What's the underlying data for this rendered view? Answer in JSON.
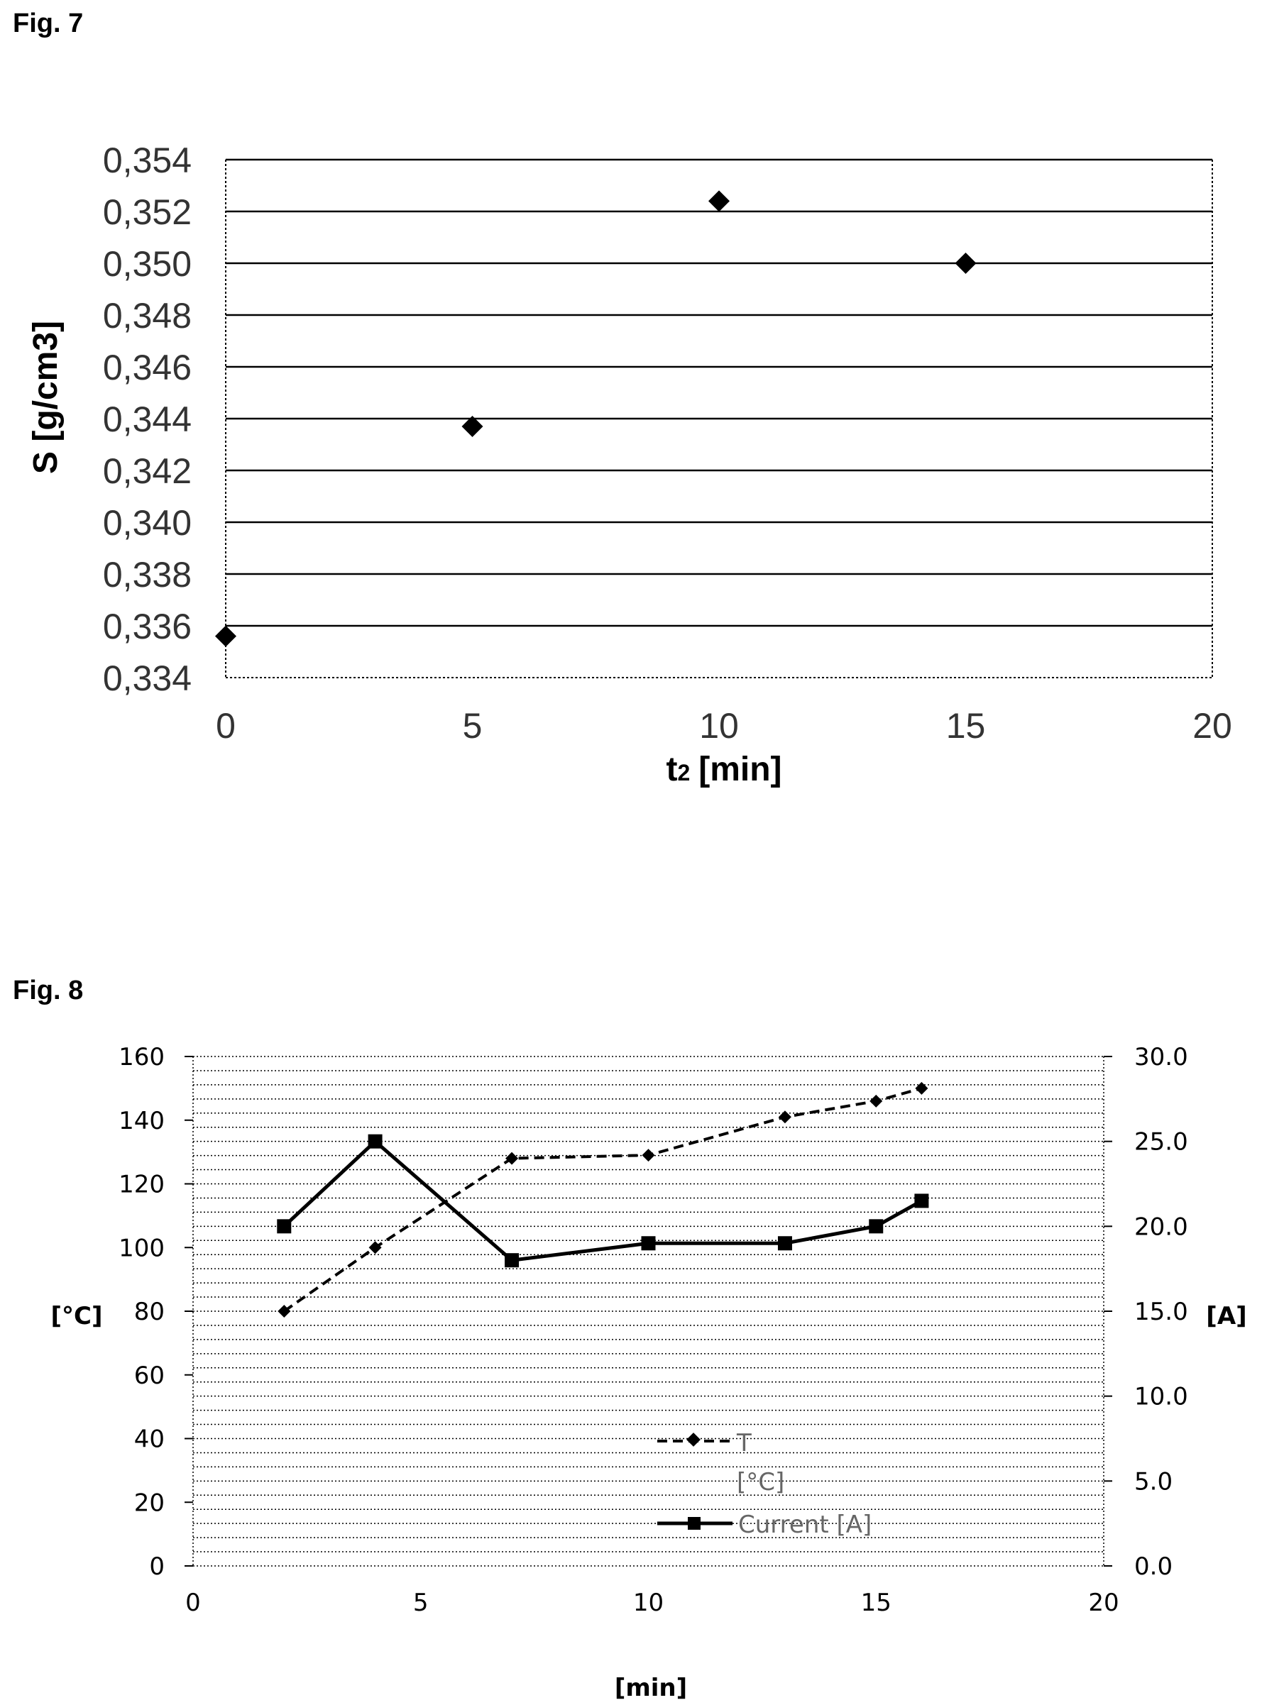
{
  "fig7": {
    "label": "Fig. 7",
    "chart_data": {
      "type": "scatter",
      "title": "",
      "xlabel": "t",
      "xlabel_sub": "2",
      "xlabel_unit": "[min]",
      "ylabel": "S [g/cm3]",
      "xlim": [
        0,
        20
      ],
      "ylim": [
        0.334,
        0.354
      ],
      "xticks": [
        "0",
        "5",
        "10",
        "15",
        "20"
      ],
      "yticks": [
        "0,334",
        "0,336",
        "0,338",
        "0,340",
        "0,342",
        "0,344",
        "0,346",
        "0,348",
        "0,350",
        "0,352",
        "0,354"
      ],
      "grid": true,
      "marker": "diamond",
      "points": [
        {
          "x": 0,
          "y": 0.3356
        },
        {
          "x": 5,
          "y": 0.3437
        },
        {
          "x": 10,
          "y": 0.3524
        },
        {
          "x": 15,
          "y": 0.35
        }
      ]
    }
  },
  "fig8": {
    "label": "Fig. 8",
    "chart_data": {
      "type": "line",
      "title": "",
      "xlabel": "[min]",
      "ylabel_left": "[°C]",
      "ylabel_right": "[A]",
      "xlim": [
        0,
        20
      ],
      "ylim_left": [
        0,
        160
      ],
      "ylim_right": [
        0,
        30
      ],
      "xticks": [
        "0",
        "5",
        "10",
        "15",
        "20"
      ],
      "yticks_left": [
        "0",
        "20",
        "40",
        "60",
        "80",
        "100",
        "120",
        "140",
        "160"
      ],
      "yticks_right": [
        "0.0",
        "5.0",
        "10.0",
        "15.0",
        "20.0",
        "25.0",
        "30.0"
      ],
      "grid": true,
      "legend_position": "lower-center",
      "series": [
        {
          "name_line1": "T",
          "name_line2": "[°C]",
          "axis": "left",
          "style": "dashed",
          "marker": "diamond",
          "x": [
            2,
            4,
            7,
            10,
            13,
            15,
            16
          ],
          "y": [
            80,
            100,
            128,
            129,
            141,
            146,
            150
          ]
        },
        {
          "name": "Current [A]",
          "axis": "right",
          "style": "solid",
          "marker": "square",
          "x": [
            2,
            4,
            7,
            10,
            13,
            15,
            16
          ],
          "y": [
            20,
            25,
            18,
            19,
            19,
            20,
            21.5
          ]
        }
      ]
    }
  }
}
